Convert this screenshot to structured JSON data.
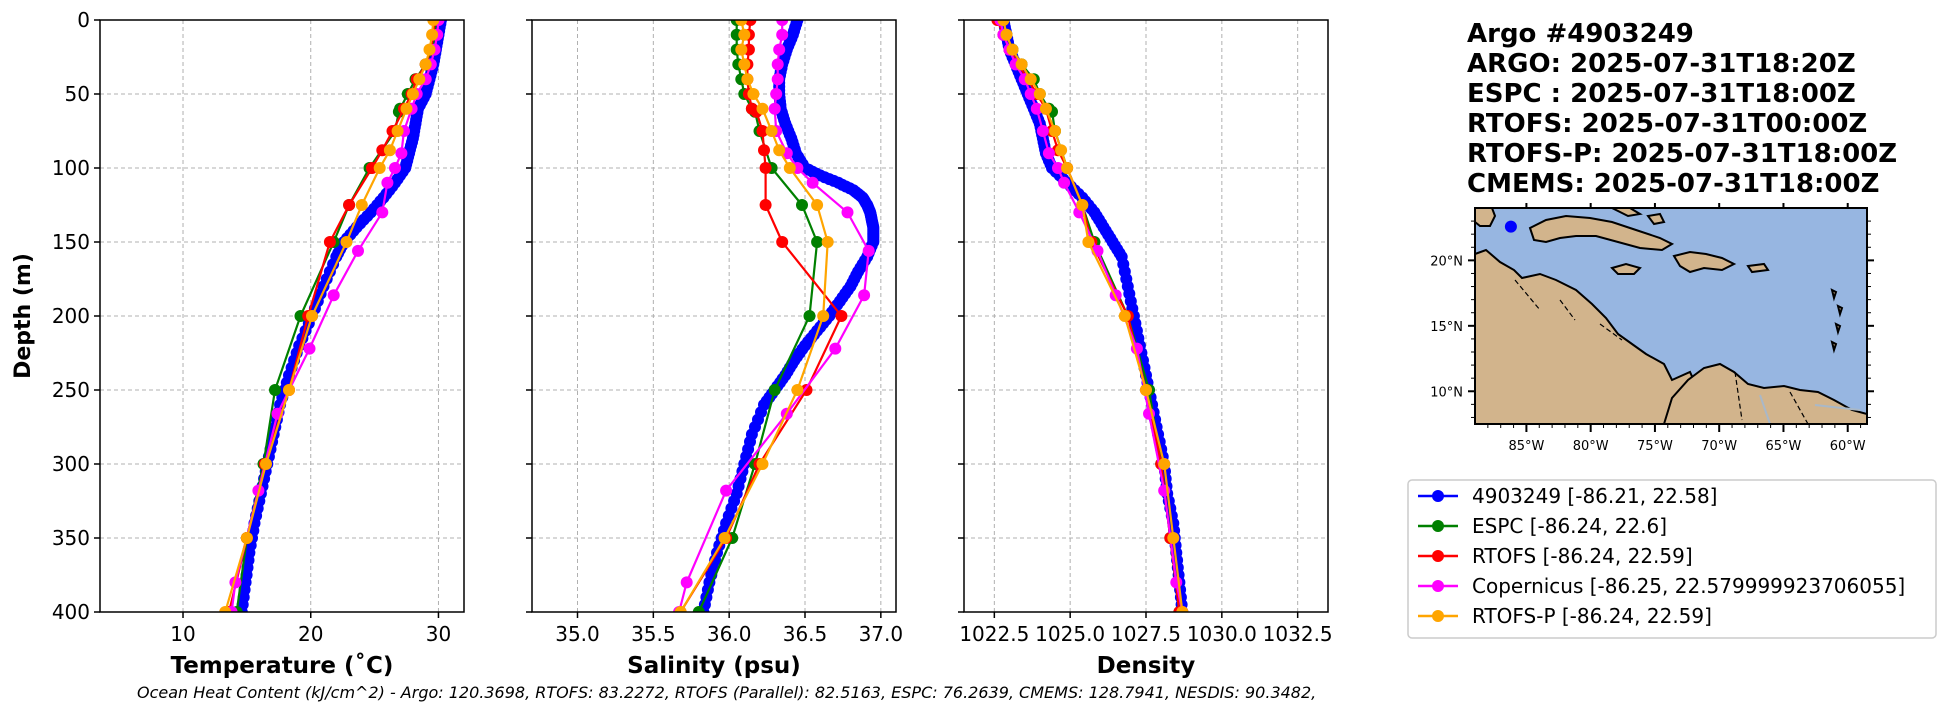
{
  "colors": {
    "argo": "#0000ff",
    "espc": "#008000",
    "rtofs": "#ff0000",
    "copernicus": "#ff00ff",
    "rtofsp": "#ffa500",
    "ocean": "#97b6e1",
    "land": "#d2b48c",
    "grid": "#b0b0b0"
  },
  "series_meta": [
    {
      "key": "argo",
      "label": "4903249 [-86.21, 22.58]"
    },
    {
      "key": "espc",
      "label": "ESPC [-86.24, 22.6]"
    },
    {
      "key": "rtofs",
      "label": "RTOFS [-86.24, 22.59]"
    },
    {
      "key": "copernicus",
      "label": "Copernicus [-86.25, 22.579999923706055]"
    },
    {
      "key": "rtofsp",
      "label": "RTOFS-P [-86.24, 22.59]"
    }
  ],
  "title_lines": [
    "Argo #4903249",
    "ARGO: 2025-07-31T18:20Z",
    "ESPC : 2025-07-31T18:00Z",
    "RTOFS: 2025-07-31T00:00Z",
    "RTOFS-P: 2025-07-31T18:00Z",
    "CMEMS: 2025-07-31T18:00Z"
  ],
  "footer": "Ocean Heat Content (kJ/cm^2) - Argo: 120.3698,  RTOFS: 83.2272,  RTOFS (Parallel): 82.5163,  ESPC: 76.2639,  CMEMS: 128.7941,  NESDIS: 90.3482,",
  "ylabel": "Depth (m)",
  "map": {
    "lon_ticks": [
      "85°W",
      "80°W",
      "75°W",
      "70°W",
      "65°W",
      "60°W"
    ],
    "lat_ticks": [
      "20°N",
      "15°N",
      "10°N"
    ],
    "point_lon": -86.21,
    "point_lat": 22.58
  },
  "chart_data": [
    {
      "type": "line",
      "title": "",
      "xlabel": "Temperature (˚C)",
      "ylabel": "Depth (m)",
      "xlim": [
        3.5,
        32
      ],
      "ylim": [
        400,
        0
      ],
      "xticks": [
        10,
        20,
        30
      ],
      "xtick_labels": [
        "10",
        "20",
        "30"
      ],
      "yticks": [
        0,
        50,
        100,
        150,
        200,
        250,
        300,
        350,
        400
      ],
      "ytick_labels": [
        "0",
        "50",
        "100",
        "150",
        "200",
        "250",
        "300",
        "350",
        "400"
      ],
      "grid": true,
      "series": [
        {
          "key": "argo",
          "depth": [
            0,
            10,
            20,
            30,
            40,
            50,
            60,
            70,
            80,
            90,
            100,
            110,
            120,
            130,
            140,
            150,
            160,
            180,
            200,
            220,
            240,
            260,
            280,
            300,
            320,
            340,
            360,
            380,
            400
          ],
          "values": [
            30.2,
            30.0,
            29.8,
            29.6,
            29.3,
            29.0,
            28.4,
            28.2,
            28.0,
            27.7,
            27.4,
            26.6,
            25.7,
            24.7,
            23.6,
            22.6,
            22.0,
            21.0,
            20.1,
            19.1,
            18.3,
            17.6,
            17.1,
            16.6,
            16.1,
            15.6,
            15.2,
            14.9,
            14.6
          ]
        },
        {
          "key": "espc",
          "depth": [
            0,
            10,
            20,
            30,
            40,
            50,
            60,
            62,
            75,
            100,
            125,
            150,
            200,
            250,
            300,
            350,
            400
          ],
          "values": [
            29.8,
            29.7,
            29.5,
            29.0,
            28.2,
            27.6,
            27.0,
            26.9,
            26.6,
            24.6,
            23.0,
            21.8,
            19.2,
            17.2,
            16.3,
            15.0,
            14.2
          ]
        },
        {
          "key": "rtofs",
          "depth": [
            0,
            10,
            20,
            30,
            40,
            50,
            60,
            75,
            88,
            100,
            125,
            150,
            200,
            250,
            300,
            350,
            400
          ],
          "values": [
            29.7,
            29.6,
            29.4,
            29.0,
            28.3,
            27.9,
            27.3,
            26.4,
            25.6,
            24.8,
            23.0,
            21.5,
            19.8,
            18.3,
            16.4,
            15.0,
            13.6
          ]
        },
        {
          "key": "copernicus",
          "depth": [
            0,
            10,
            20,
            30,
            40,
            50,
            60,
            75,
            90,
            100,
            110,
            130,
            156,
            186,
            222,
            266,
            318,
            380,
            400
          ],
          "values": [
            30.0,
            29.9,
            29.7,
            29.4,
            29.0,
            28.3,
            27.9,
            27.3,
            27.1,
            26.6,
            26.0,
            25.6,
            23.7,
            21.8,
            19.9,
            17.4,
            15.9,
            14.1,
            13.8
          ]
        },
        {
          "key": "rtofsp",
          "depth": [
            0,
            10,
            20,
            30,
            40,
            50,
            60,
            75,
            88,
            100,
            125,
            150,
            200,
            250,
            300,
            350,
            400
          ],
          "values": [
            29.6,
            29.5,
            29.3,
            29.0,
            28.5,
            28.0,
            27.5,
            26.8,
            26.2,
            25.4,
            24.0,
            22.8,
            20.1,
            18.3,
            16.5,
            15.0,
            13.3
          ]
        }
      ]
    },
    {
      "type": "line",
      "title": "",
      "xlabel": "Salinity (psu)",
      "xlim": [
        34.7,
        37.1
      ],
      "ylim": [
        400,
        0
      ],
      "xticks": [
        35.0,
        35.5,
        36.0,
        36.5,
        37.0
      ],
      "xtick_labels": [
        "35.0",
        "35.5",
        "36.0",
        "36.5",
        "37.0"
      ],
      "yticks": [
        0,
        50,
        100,
        150,
        200,
        250,
        300,
        350,
        400
      ],
      "grid": true,
      "series": [
        {
          "key": "argo",
          "depth": [
            0,
            10,
            20,
            30,
            40,
            50,
            60,
            70,
            80,
            90,
            100,
            105,
            110,
            115,
            120,
            125,
            130,
            135,
            140,
            145,
            150,
            160,
            170,
            180,
            190,
            200,
            210,
            220,
            230,
            240,
            250,
            260,
            280,
            300,
            320,
            340,
            360,
            380,
            400
          ],
          "values": [
            36.45,
            36.42,
            36.38,
            36.35,
            36.33,
            36.33,
            36.34,
            36.37,
            36.41,
            36.44,
            36.5,
            36.6,
            36.72,
            36.82,
            36.88,
            36.91,
            36.93,
            36.94,
            36.95,
            36.95,
            36.95,
            36.91,
            36.85,
            36.8,
            36.73,
            36.66,
            36.58,
            36.5,
            36.43,
            36.37,
            36.3,
            36.23,
            36.15,
            36.1,
            36.05,
            35.98,
            35.92,
            35.87,
            35.83
          ]
        },
        {
          "key": "espc",
          "depth": [
            0,
            10,
            20,
            30,
            40,
            50,
            60,
            62,
            75,
            100,
            125,
            150,
            200,
            250,
            300,
            350,
            400
          ],
          "values": [
            36.05,
            36.05,
            36.05,
            36.06,
            36.08,
            36.1,
            36.15,
            36.17,
            36.2,
            36.28,
            36.48,
            36.58,
            36.53,
            36.3,
            36.17,
            36.02,
            35.8
          ]
        },
        {
          "key": "rtofs",
          "depth": [
            0,
            10,
            20,
            30,
            40,
            50,
            60,
            62,
            75,
            88,
            100,
            125,
            150,
            200,
            250,
            300,
            350,
            400
          ],
          "values": [
            36.14,
            36.13,
            36.13,
            36.12,
            36.12,
            36.13,
            36.15,
            36.18,
            36.22,
            36.23,
            36.24,
            36.24,
            36.35,
            36.74,
            36.51,
            36.2,
            35.98,
            35.68
          ]
        },
        {
          "key": "copernicus",
          "depth": [
            0,
            10,
            20,
            30,
            40,
            50,
            60,
            75,
            90,
            100,
            110,
            130,
            156,
            186,
            222,
            266,
            318,
            380,
            400
          ],
          "values": [
            36.35,
            36.35,
            36.33,
            36.32,
            36.32,
            36.31,
            36.3,
            36.31,
            36.38,
            36.45,
            36.55,
            36.78,
            36.92,
            36.89,
            36.7,
            36.38,
            35.98,
            35.72,
            35.67
          ]
        },
        {
          "key": "rtofsp",
          "depth": [
            0,
            10,
            20,
            30,
            40,
            50,
            60,
            75,
            88,
            100,
            125,
            150,
            200,
            250,
            300,
            350,
            400
          ],
          "values": [
            36.08,
            36.1,
            36.08,
            36.1,
            36.12,
            36.16,
            36.22,
            36.28,
            36.33,
            36.4,
            36.58,
            36.65,
            36.62,
            36.45,
            36.22,
            35.97,
            35.68
          ]
        }
      ]
    },
    {
      "type": "line",
      "title": "",
      "xlabel": "Density",
      "xlim": [
        1021.5,
        1033.5
      ],
      "ylim": [
        400,
        0
      ],
      "xticks": [
        1022.5,
        1025.0,
        1027.5,
        1030.0,
        1032.5
      ],
      "xtick_labels": [
        "1022.5",
        "1025.0",
        "1027.5",
        "1030.0",
        "1032.5"
      ],
      "yticks": [
        0,
        50,
        100,
        150,
        200,
        250,
        300,
        350,
        400
      ],
      "grid": true,
      "series": [
        {
          "key": "argo",
          "depth": [
            0,
            10,
            20,
            30,
            40,
            50,
            60,
            70,
            80,
            90,
            100,
            110,
            120,
            130,
            140,
            150,
            160,
            180,
            200,
            220,
            240,
            260,
            280,
            300,
            320,
            340,
            360,
            380,
            400
          ],
          "values": [
            1022.8,
            1022.9,
            1023.0,
            1023.2,
            1023.4,
            1023.6,
            1023.8,
            1024.0,
            1024.1,
            1024.2,
            1024.4,
            1024.9,
            1025.4,
            1025.8,
            1026.1,
            1026.4,
            1026.7,
            1026.9,
            1027.1,
            1027.3,
            1027.5,
            1027.7,
            1027.9,
            1028.1,
            1028.2,
            1028.4,
            1028.5,
            1028.6,
            1028.7
          ]
        },
        {
          "key": "espc",
          "depth": [
            0,
            10,
            20,
            30,
            40,
            50,
            60,
            62,
            75,
            100,
            125,
            150,
            200,
            250,
            300,
            350,
            400
          ],
          "values": [
            1022.8,
            1022.9,
            1023.1,
            1023.4,
            1023.8,
            1024.0,
            1024.3,
            1024.4,
            1024.5,
            1024.9,
            1025.4,
            1025.8,
            1026.9,
            1027.6,
            1028.0,
            1028.3,
            1028.6
          ]
        },
        {
          "key": "rtofs",
          "depth": [
            0,
            10,
            20,
            30,
            40,
            50,
            60,
            75,
            88,
            100,
            125,
            150,
            200,
            250,
            300,
            350,
            400
          ],
          "values": [
            1022.6,
            1022.8,
            1023.0,
            1023.3,
            1023.6,
            1023.9,
            1024.2,
            1024.4,
            1024.6,
            1024.9,
            1025.4,
            1025.7,
            1026.9,
            1027.5,
            1028.0,
            1028.3,
            1028.6
          ]
        },
        {
          "key": "copernicus",
          "depth": [
            0,
            10,
            20,
            30,
            40,
            50,
            60,
            75,
            90,
            100,
            110,
            130,
            156,
            186,
            222,
            266,
            318,
            380,
            400
          ],
          "values": [
            1022.7,
            1022.8,
            1023.0,
            1023.2,
            1023.5,
            1023.7,
            1023.9,
            1024.1,
            1024.3,
            1024.6,
            1024.8,
            1025.3,
            1025.9,
            1026.5,
            1027.2,
            1027.6,
            1028.1,
            1028.5,
            1028.7
          ]
        },
        {
          "key": "rtofsp",
          "depth": [
            0,
            10,
            20,
            30,
            40,
            50,
            60,
            75,
            88,
            100,
            125,
            150,
            200,
            250,
            300,
            350,
            400
          ],
          "values": [
            1022.8,
            1022.9,
            1023.1,
            1023.4,
            1023.7,
            1024.0,
            1024.2,
            1024.5,
            1024.7,
            1024.9,
            1025.4,
            1025.6,
            1026.8,
            1027.5,
            1028.1,
            1028.4,
            1028.7
          ]
        }
      ]
    }
  ]
}
